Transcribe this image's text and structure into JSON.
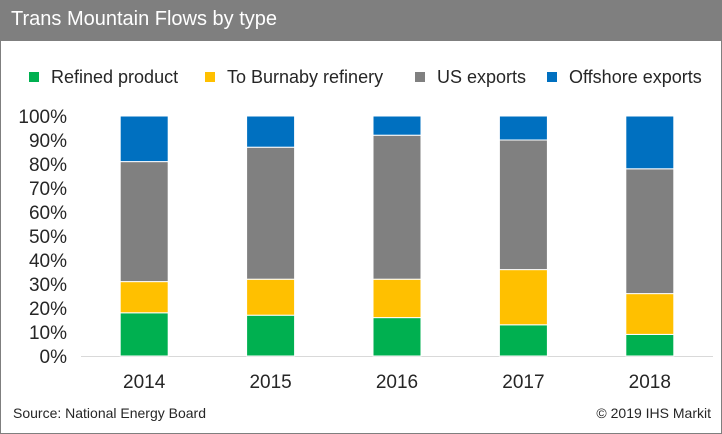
{
  "header": {
    "title": "Trans Mountain Flows by type"
  },
  "footer": {
    "source": "Source: National Energy Board",
    "copyright": "© 2019 IHS  Markit"
  },
  "chart_data": {
    "type": "bar",
    "stacked": true,
    "title": "Trans Mountain Flows by type",
    "xlabel": "",
    "ylabel": "",
    "categories": [
      "2014",
      "2015",
      "2016",
      "2017",
      "2018"
    ],
    "series": [
      {
        "name": "Refined product",
        "color": "#00b050",
        "values": [
          18,
          17,
          16,
          13,
          9
        ]
      },
      {
        "name": "To Burnaby refinery",
        "color": "#ffc000",
        "values": [
          13,
          15,
          16,
          23,
          17
        ]
      },
      {
        "name": "US exports",
        "color": "#808080",
        "values": [
          50,
          55,
          60,
          54,
          52
        ]
      },
      {
        "name": "Offshore exports",
        "color": "#0070c0",
        "values": [
          19,
          13,
          8,
          10,
          22
        ]
      }
    ],
    "ylim": [
      0,
      100
    ],
    "yticks": [
      "0%",
      "10%",
      "20%",
      "30%",
      "40%",
      "50%",
      "60%",
      "70%",
      "80%",
      "90%",
      "100%"
    ],
    "grid": false,
    "legend": "top"
  }
}
